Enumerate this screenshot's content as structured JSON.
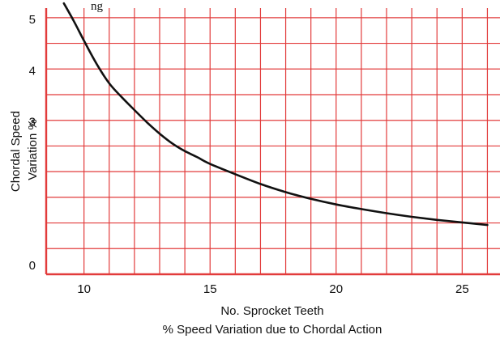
{
  "chart_data": {
    "type": "line",
    "top_text_fragment": "ng",
    "xlabel": "No. Sprocket Teeth",
    "caption": "% Speed Variation due to Chordal Action",
    "ylabel_lines": [
      "Chordal Speed",
      "Variation %"
    ],
    "xlim": [
      8.5,
      26.5
    ],
    "ylim": [
      0,
      5.25
    ],
    "x_ticks": [
      10,
      15,
      20,
      25
    ],
    "x_tick_labels": [
      "10",
      "15",
      "20",
      "25"
    ],
    "y_ticks": [
      0,
      3,
      4,
      5
    ],
    "y_tick_labels": [
      "0",
      "3",
      "4",
      "5"
    ],
    "x_grid": [
      10,
      11,
      12,
      13,
      14,
      15,
      16,
      17,
      18,
      19,
      20,
      21,
      22,
      23,
      24,
      25,
      26
    ],
    "y_grid": [
      0.5,
      1.0,
      1.5,
      2.0,
      2.5,
      3.0,
      3.5,
      4.0,
      4.5,
      5.0
    ],
    "grid": true,
    "grid_color": "#e23b3b",
    "line_color": "#111111",
    "series": [
      {
        "x": [
          9.2,
          9.6,
          10.0,
          10.5,
          11.0,
          11.5,
          12.0,
          12.5,
          13.0,
          13.5,
          14.0,
          14.5,
          15.0,
          16.0,
          17.0,
          18.0,
          19.0,
          20.0,
          21.0,
          22.0,
          23.0,
          24.0,
          25.0,
          26.0
        ],
        "values": [
          5.28,
          4.93,
          4.55,
          4.1,
          3.72,
          3.45,
          3.2,
          2.96,
          2.74,
          2.55,
          2.4,
          2.28,
          2.15,
          1.95,
          1.76,
          1.6,
          1.47,
          1.36,
          1.27,
          1.19,
          1.12,
          1.06,
          1.01,
          0.96
        ]
      }
    ]
  }
}
